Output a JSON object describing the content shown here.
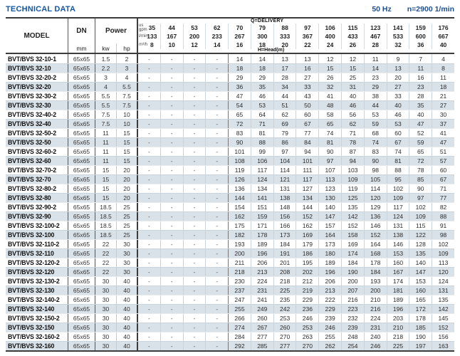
{
  "page_title": "TECHNICAL DATA",
  "frequency_label": "50 Hz",
  "speed_label": "n=2900 1/min",
  "table": {
    "headers": {
      "model": "MODEL",
      "dn": "DN",
      "dn_unit": "mm",
      "power": "Power",
      "power_unit_kw": "kw",
      "power_unit_hp": "hp",
      "delivery_title": "Q=DELIVERY",
      "head_title": "H=Head(m)",
      "flow_rows": [
        {
          "unit": "us\ngpm",
          "values": [
            "35",
            "44",
            "53",
            "62",
            "70",
            "79",
            "88",
            "97",
            "106",
            "115",
            "123",
            "141",
            "159",
            "176"
          ]
        },
        {
          "unit": "l/min",
          "values": [
            "133",
            "167",
            "200",
            "233",
            "267",
            "300",
            "333",
            "367",
            "400",
            "433",
            "467",
            "533",
            "600",
            "667"
          ]
        },
        {
          "unit": "m³/h",
          "values": [
            "8",
            "10",
            "12",
            "14",
            "16",
            "18",
            "20",
            "22",
            "24",
            "26",
            "28",
            "32",
            "36",
            "40"
          ]
        }
      ]
    },
    "rows": [
      {
        "model": "BVT/BVS 32-10-1",
        "dn": "65x65",
        "kw": "1.5",
        "hp": "2",
        "head": [
          "-",
          "-",
          "-",
          "-",
          "14",
          "14",
          "13",
          "13",
          "12",
          "12",
          "11",
          "9",
          "7",
          "4"
        ]
      },
      {
        "model": "BVT/BVS 32-10",
        "dn": "65x65",
        "kw": "2.2",
        "hp": "3",
        "head": [
          "-",
          "-",
          "-",
          "-",
          "18",
          "18",
          "17",
          "16",
          "15",
          "15",
          "14",
          "13",
          "11",
          "8"
        ]
      },
      {
        "model": "BVT/BVS 32-20-2",
        "dn": "65x65",
        "kw": "3",
        "hp": "4",
        "head": [
          "-",
          "-",
          "-",
          "-",
          "29",
          "29",
          "28",
          "27",
          "26",
          "25",
          "23",
          "20",
          "16",
          "11"
        ]
      },
      {
        "model": "BVT/BVS 32-20",
        "dn": "65x65",
        "kw": "4",
        "hp": "5.5",
        "head": [
          "-",
          "-",
          "-",
          "-",
          "36",
          "35",
          "34",
          "33",
          "32",
          "31",
          "29",
          "27",
          "23",
          "18"
        ]
      },
      {
        "model": "BVT/BVS 32-30-2",
        "dn": "65x65",
        "kw": "5.5",
        "hp": "7.5",
        "head": [
          "-",
          "-",
          "-",
          "-",
          "47",
          "46",
          "44",
          "43",
          "41",
          "40",
          "38",
          "33",
          "28",
          "21"
        ]
      },
      {
        "model": "BVT/BVS 32-30",
        "dn": "65x65",
        "kw": "5.5",
        "hp": "7.5",
        "head": [
          "-",
          "-",
          "-",
          "-",
          "54",
          "53",
          "51",
          "50",
          "48",
          "46",
          "44",
          "40",
          "35",
          "27"
        ]
      },
      {
        "model": "BVT/BVS 32-40-2",
        "dn": "65x65",
        "kw": "7.5",
        "hp": "10",
        "head": [
          "-",
          "-",
          "-",
          "-",
          "65",
          "64",
          "62",
          "60",
          "58",
          "56",
          "53",
          "46",
          "40",
          "30"
        ]
      },
      {
        "model": "BVT/BVS 32-40",
        "dn": "65x65",
        "kw": "7.5",
        "hp": "10",
        "head": [
          "-",
          "-",
          "-",
          "-",
          "72",
          "71",
          "69",
          "67",
          "65",
          "62",
          "59",
          "53",
          "47",
          "37"
        ]
      },
      {
        "model": "BVT/BVS 32-50-2",
        "dn": "65x65",
        "kw": "11",
        "hp": "15",
        "head": [
          "-",
          "-",
          "-",
          "-",
          "83",
          "81",
          "79",
          "77",
          "74",
          "71",
          "68",
          "60",
          "52",
          "41"
        ]
      },
      {
        "model": "BVT/BVS 32-50",
        "dn": "65x65",
        "kw": "11",
        "hp": "15",
        "head": [
          "-",
          "-",
          "-",
          "-",
          "90",
          "88",
          "86",
          "84",
          "81",
          "78",
          "74",
          "67",
          "59",
          "47"
        ]
      },
      {
        "model": "BVT/BVS 32-60-2",
        "dn": "65x65",
        "kw": "11",
        "hp": "15",
        "head": [
          "-",
          "-",
          "-",
          "-",
          "101",
          "99",
          "97",
          "94",
          "90",
          "87",
          "83",
          "74",
          "65",
          "51"
        ]
      },
      {
        "model": "BVT/BVS 32-60",
        "dn": "65x65",
        "kw": "11",
        "hp": "15",
        "head": [
          "-",
          "-",
          "-",
          "-",
          "108",
          "106",
          "104",
          "101",
          "97",
          "94",
          "90",
          "81",
          "72",
          "57"
        ]
      },
      {
        "model": "BVT/BVS 32-70-2",
        "dn": "65x65",
        "kw": "15",
        "hp": "20",
        "head": [
          "-",
          "-",
          "-",
          "-",
          "119",
          "117",
          "114",
          "111",
          "107",
          "103",
          "98",
          "88",
          "78",
          "60"
        ]
      },
      {
        "model": "BVT/BVS 32-70",
        "dn": "65x65",
        "kw": "15",
        "hp": "20",
        "head": [
          "-",
          "-",
          "-",
          "-",
          "126",
          "124",
          "121",
          "117",
          "113",
          "109",
          "105",
          "95",
          "85",
          "67"
        ]
      },
      {
        "model": "BVT/BVS 32-80-2",
        "dn": "65x65",
        "kw": "15",
        "hp": "20",
        "head": [
          "-",
          "-",
          "-",
          "-",
          "136",
          "134",
          "131",
          "127",
          "123",
          "119",
          "114",
          "102",
          "90",
          "71"
        ]
      },
      {
        "model": "BVT/BVS 32-80",
        "dn": "65x65",
        "kw": "15",
        "hp": "20",
        "head": [
          "-",
          "-",
          "-",
          "-",
          "144",
          "141",
          "138",
          "134",
          "130",
          "125",
          "120",
          "109",
          "97",
          "77"
        ]
      },
      {
        "model": "BVT/BVS 32-90-2",
        "dn": "65x65",
        "kw": "18.5",
        "hp": "25",
        "head": [
          "-",
          "-",
          "-",
          "-",
          "154",
          "151",
          "148",
          "144",
          "140",
          "135",
          "129",
          "117",
          "102",
          "82"
        ]
      },
      {
        "model": "BVT/BVS 32-90",
        "dn": "65x65",
        "kw": "18.5",
        "hp": "25",
        "head": [
          "-",
          "-",
          "-",
          "-",
          "162",
          "159",
          "156",
          "152",
          "147",
          "142",
          "136",
          "124",
          "109",
          "88"
        ]
      },
      {
        "model": "BVT/BVS 32-100-2",
        "dn": "65x65",
        "kw": "18.5",
        "hp": "25",
        "head": [
          "-",
          "-",
          "-",
          "-",
          "175",
          "171",
          "166",
          "162",
          "157",
          "152",
          "146",
          "131",
          "115",
          "91"
        ]
      },
      {
        "model": "BVT/BVS 32-100",
        "dn": "65x65",
        "kw": "18.5",
        "hp": "25",
        "head": [
          "-",
          "-",
          "-",
          "-",
          "182",
          "178",
          "173",
          "169",
          "164",
          "158",
          "152",
          "138",
          "122",
          "98"
        ]
      },
      {
        "model": "BVT/BVS 32-110-2",
        "dn": "65x65",
        "kw": "22",
        "hp": "30",
        "head": [
          "-",
          "-",
          "-",
          "-",
          "193",
          "189",
          "184",
          "179",
          "173",
          "169",
          "164",
          "146",
          "128",
          "102"
        ]
      },
      {
        "model": "BVT/BVS 32-110",
        "dn": "65x65",
        "kw": "22",
        "hp": "30",
        "head": [
          "-",
          "-",
          "-",
          "-",
          "200",
          "196",
          "191",
          "186",
          "180",
          "174",
          "168",
          "153",
          "135",
          "109"
        ]
      },
      {
        "model": "BVT/BVS 32-120-2",
        "dn": "65x65",
        "kw": "22",
        "hp": "30",
        "head": [
          "-",
          "-",
          "-",
          "-",
          "211",
          "206",
          "201",
          "195",
          "189",
          "184",
          "178",
          "160",
          "140",
          "113"
        ]
      },
      {
        "model": "BVT/BVS 32-120",
        "dn": "65x65",
        "kw": "22",
        "hp": "30",
        "head": [
          "-",
          "-",
          "-",
          "-",
          "218",
          "213",
          "208",
          "202",
          "196",
          "190",
          "184",
          "167",
          "147",
          "120"
        ]
      },
      {
        "model": "BVT/BVS 32-130-2",
        "dn": "65x65",
        "kw": "30",
        "hp": "40",
        "head": [
          "-",
          "-",
          "-",
          "-",
          "230",
          "224",
          "218",
          "212",
          "206",
          "200",
          "193",
          "174",
          "153",
          "124"
        ]
      },
      {
        "model": "BVT/BVS 32-130",
        "dn": "65x65",
        "kw": "30",
        "hp": "40",
        "head": [
          "-",
          "-",
          "-",
          "-",
          "237",
          "231",
          "225",
          "219",
          "213",
          "207",
          "200",
          "181",
          "160",
          "131"
        ]
      },
      {
        "model": "BVT/BVS 32-140-2",
        "dn": "65x65",
        "kw": "30",
        "hp": "40",
        "head": [
          "-",
          "-",
          "-",
          "-",
          "247",
          "241",
          "235",
          "229",
          "222",
          "216",
          "210",
          "189",
          "165",
          "135"
        ]
      },
      {
        "model": "BVT/BVS 32-140",
        "dn": "65x65",
        "kw": "30",
        "hp": "40",
        "head": [
          "-",
          "-",
          "-",
          "-",
          "255",
          "249",
          "242",
          "236",
          "229",
          "223",
          "216",
          "196",
          "172",
          "142"
        ]
      },
      {
        "model": "BVT/BVS 32-150-2",
        "dn": "65x65",
        "kw": "30",
        "hp": "40",
        "head": [
          "-",
          "-",
          "-",
          "-",
          "266",
          "260",
          "253",
          "246",
          "239",
          "232",
          "224",
          "203",
          "178",
          "145"
        ]
      },
      {
        "model": "BVT/BVS 32-150",
        "dn": "65x65",
        "kw": "30",
        "hp": "40",
        "head": [
          "-",
          "-",
          "-",
          "-",
          "274",
          "267",
          "260",
          "253",
          "246",
          "239",
          "231",
          "210",
          "185",
          "152"
        ]
      },
      {
        "model": "BVT/BVS 32-160-2",
        "dn": "65x65",
        "kw": "30",
        "hp": "40",
        "head": [
          "-",
          "-",
          "-",
          "-",
          "284",
          "277",
          "270",
          "263",
          "255",
          "248",
          "240",
          "218",
          "190",
          "156"
        ]
      },
      {
        "model": "BVT/BVS 32-160",
        "dn": "65x65",
        "kw": "30",
        "hp": "40",
        "head": [
          "-",
          "-",
          "-",
          "-",
          "292",
          "285",
          "277",
          "270",
          "262",
          "254",
          "246",
          "225",
          "197",
          "163"
        ]
      }
    ]
  },
  "colors": {
    "accent_blue": "#1658a2",
    "stripe": "#d9e2e9",
    "border_dark": "#3c3c3c"
  }
}
